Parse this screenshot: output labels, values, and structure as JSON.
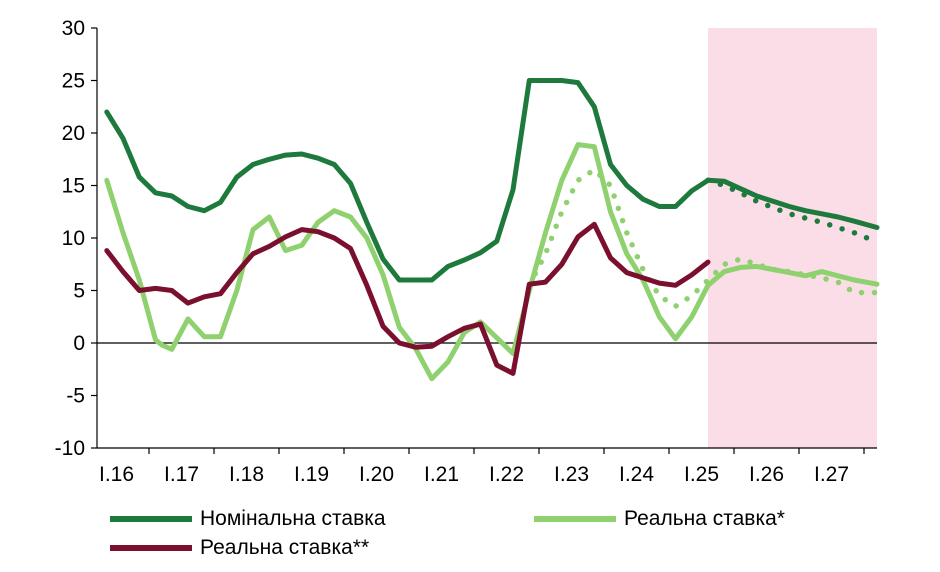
{
  "chart_data": {
    "type": "line",
    "title": "",
    "xlabel": "",
    "ylabel": "",
    "ylim": [
      -10,
      30
    ],
    "yticks": [
      "30",
      "25",
      "20",
      "15",
      "10",
      "5",
      "0",
      "-5",
      "-10"
    ],
    "yticks_values": [
      30,
      25,
      20,
      15,
      10,
      5,
      0,
      -5,
      -10
    ],
    "xticks": [
      "I.16",
      "I.17",
      "I.18",
      "I.19",
      "I.20",
      "I.21",
      "I.22",
      "I.23",
      "I.24",
      "I.25",
      "I.26",
      "I.27"
    ],
    "x_start": 2016.0,
    "x_end": 2027.85,
    "forecast_start": 2025.25,
    "forecast_color": "#fbdde8",
    "series": [
      {
        "name": "Номінальна ставка",
        "color": "#1e7a3c",
        "style": "solid",
        "x": [
          2016.0,
          2016.25,
          2016.5,
          2016.75,
          2017.0,
          2017.25,
          2017.5,
          2017.75,
          2018.0,
          2018.25,
          2018.5,
          2018.75,
          2019.0,
          2019.25,
          2019.5,
          2019.75,
          2020.0,
          2020.25,
          2020.5,
          2020.75,
          2021.0,
          2021.25,
          2021.5,
          2021.75,
          2022.0,
          2022.25,
          2022.5,
          2022.75,
          2023.0,
          2023.25,
          2023.5,
          2023.75,
          2024.0,
          2024.25,
          2024.5,
          2024.75,
          2025.0,
          2025.25,
          2025.5,
          2025.75,
          2026.0,
          2026.25,
          2026.5,
          2026.75,
          2027.0,
          2027.25,
          2027.5,
          2027.85
        ],
        "values": [
          22,
          19.5,
          15.8,
          14.3,
          14,
          13,
          12.6,
          13.4,
          15.8,
          17,
          17.5,
          17.9,
          18,
          17.6,
          17,
          15.2,
          11.5,
          8,
          6,
          6,
          6,
          7.3,
          7.9,
          8.6,
          9.7,
          14.6,
          25,
          25,
          25,
          24.8,
          22.5,
          17,
          15,
          13.7,
          13,
          13,
          14.5,
          15.5,
          15.4,
          14.7,
          14,
          13.5,
          13,
          12.6,
          12.3,
          12,
          11.6,
          11
        ]
      },
      {
        "name": "",
        "color": "#1e7a3c",
        "style": "dotted",
        "x": [
          2025.25,
          2025.5,
          2025.75,
          2026.0,
          2026.25,
          2026.5,
          2026.75,
          2027.0,
          2027.25,
          2027.5,
          2027.7
        ],
        "values": [
          15.5,
          15,
          14.3,
          13.5,
          12.9,
          12.3,
          11.9,
          11.5,
          11,
          10.5,
          10
        ]
      },
      {
        "name": "Реальна ставка*",
        "color": "#8fd16f",
        "style": "solid",
        "x": [
          2016.0,
          2016.25,
          2016.5,
          2016.75,
          2016.85,
          2017.0,
          2017.25,
          2017.5,
          2017.75,
          2018.0,
          2018.25,
          2018.5,
          2018.75,
          2019.0,
          2019.25,
          2019.5,
          2019.75,
          2020.0,
          2020.25,
          2020.5,
          2020.75,
          2021.0,
          2021.25,
          2021.5,
          2021.75,
          2022.0,
          2022.25,
          2022.5,
          2022.75,
          2023.0,
          2023.25,
          2023.5,
          2023.75,
          2024.0,
          2024.25,
          2024.5,
          2024.75,
          2025.0,
          2025.25,
          2025.5,
          2025.75,
          2026.0,
          2026.25,
          2026.5,
          2026.75,
          2027.0,
          2027.25,
          2027.5,
          2027.85
        ],
        "values": [
          15.5,
          10.5,
          6,
          0.3,
          -0.2,
          -0.6,
          2.3,
          0.6,
          0.6,
          5,
          10.8,
          12,
          8.8,
          9.3,
          11.5,
          12.6,
          12,
          10,
          6.5,
          1.5,
          -0.5,
          -3.4,
          -1.8,
          1,
          2,
          0.5,
          -1,
          5,
          10.5,
          15.5,
          18.9,
          18.7,
          12.5,
          8.5,
          6,
          2.5,
          0.4,
          2.5,
          5.5,
          6.8,
          7.2,
          7.3,
          7,
          6.7,
          6.4,
          6.8,
          6.4,
          6,
          5.6
        ]
      },
      {
        "name": "",
        "color": "#8fd16f",
        "style": "dotted",
        "x": [
          2022.5,
          2022.75,
          2023.0,
          2023.25,
          2023.5,
          2023.75,
          2024.0,
          2024.25,
          2024.5,
          2024.75,
          2025.0,
          2025.25,
          2025.5,
          2025.75,
          2026.0,
          2026.25,
          2026.5,
          2026.75,
          2027.0,
          2027.25,
          2027.5,
          2027.85
        ],
        "values": [
          5.5,
          8.5,
          12.5,
          15.5,
          16.5,
          15,
          10.5,
          7,
          4.5,
          3.5,
          4.5,
          6,
          7.5,
          8,
          7.5,
          7,
          6.8,
          6.5,
          6.2,
          5.8,
          4.8,
          4.8
        ]
      },
      {
        "name": "Реальна ставка**",
        "color": "#7a0f2e",
        "style": "solid",
        "x": [
          2016.0,
          2016.25,
          2016.5,
          2016.75,
          2017.0,
          2017.25,
          2017.5,
          2017.75,
          2018.0,
          2018.25,
          2018.5,
          2018.75,
          2019.0,
          2019.25,
          2019.5,
          2019.75,
          2020.0,
          2020.25,
          2020.5,
          2020.75,
          2021.0,
          2021.25,
          2021.5,
          2021.75,
          2022.0,
          2022.25,
          2022.5,
          2022.75,
          2023.0,
          2023.25,
          2023.5,
          2023.75,
          2024.0,
          2024.25,
          2024.5,
          2024.75,
          2025.0,
          2025.25
        ],
        "values": [
          8.8,
          6.8,
          5,
          5.2,
          5,
          3.8,
          4.4,
          4.7,
          6.7,
          8.5,
          9.2,
          10.1,
          10.8,
          10.6,
          10,
          9,
          5.5,
          1.6,
          0,
          -0.4,
          -0.3,
          0.6,
          1.4,
          1.8,
          -2.1,
          -2.9,
          5.6,
          5.8,
          7.5,
          10.1,
          11.3,
          8.1,
          6.7,
          6.2,
          5.7,
          5.5,
          6.5,
          7.7
        ]
      }
    ],
    "legend": [
      {
        "label": "Номінальна ставка",
        "color": "#1e7a3c"
      },
      {
        "label": "Реальна ставка*",
        "color": "#8fd16f"
      },
      {
        "label": "Реальна ставка**",
        "color": "#7a0f2e"
      }
    ]
  }
}
